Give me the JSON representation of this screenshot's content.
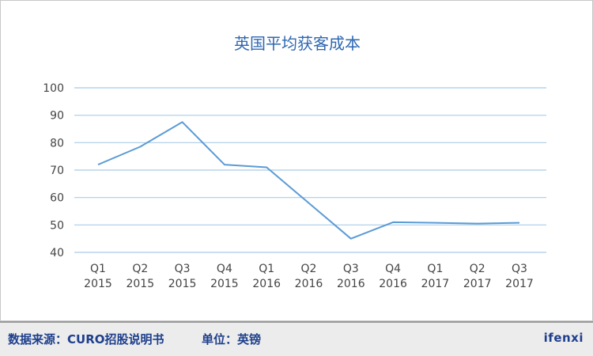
{
  "chart_data": {
    "type": "line",
    "title": "英国平均获客成本",
    "categories": [
      [
        "Q1",
        "2015"
      ],
      [
        "Q2",
        "2015"
      ],
      [
        "Q3",
        "2015"
      ],
      [
        "Q4",
        "2015"
      ],
      [
        "Q1",
        "2016"
      ],
      [
        "Q2",
        "2016"
      ],
      [
        "Q3",
        "2016"
      ],
      [
        "Q4",
        "2016"
      ],
      [
        "Q1",
        "2017"
      ],
      [
        "Q2",
        "2017"
      ],
      [
        "Q3",
        "2017"
      ]
    ],
    "series": [
      {
        "values": [
          72,
          78.5,
          87.5,
          72,
          71,
          58,
          45,
          51,
          50.8,
          50.5,
          50.8
        ]
      }
    ],
    "ylim": [
      40,
      100
    ],
    "yticks": [
      40,
      50,
      60,
      70,
      80,
      90,
      100
    ],
    "grid": true,
    "line_color": "#5b9bd5",
    "grid_color": "#a9cbe8"
  },
  "footer": {
    "source": "数据来源：CURO招股说明书",
    "unit": "单位：英镑",
    "logo": "ifenxi"
  }
}
